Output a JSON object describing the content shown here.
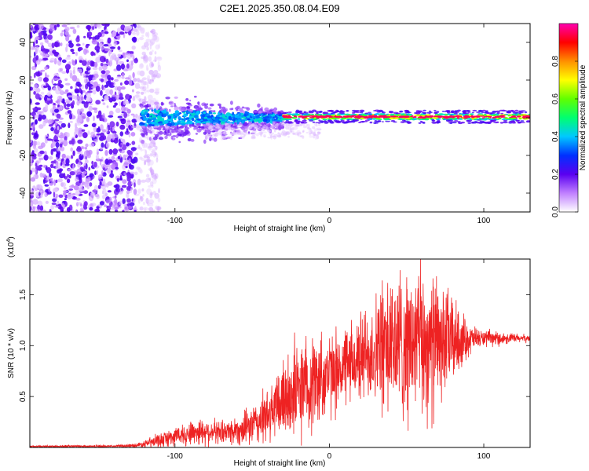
{
  "title": "C2E1.2025.350.08.04.E09",
  "colors": {
    "snr_line": "#ee2222",
    "marker": "#6a00f4",
    "axis": "#000000"
  },
  "colormap": [
    "#ffffff",
    "#c080ff",
    "#5a00f0",
    "#0030ff",
    "#00c8ff",
    "#00ff70",
    "#60ff00",
    "#ffff00",
    "#ff9000",
    "#ff0000",
    "#ff00b0"
  ],
  "chart_data": [
    {
      "type": "heatmap",
      "title": "C2E1.2025.350.08.04.E09",
      "xlabel": "Height of straight line (km)",
      "ylabel": "Frequency (Hz)",
      "xlim": [
        -194,
        130
      ],
      "ylim": [
        -50,
        50
      ],
      "xticks": [
        -100,
        0,
        100
      ],
      "xtick_labels": [
        "-100",
        "0",
        "100"
      ],
      "yticks": [
        -40,
        -20,
        0,
        20,
        40
      ],
      "ytick_labels": [
        "-40",
        "-20",
        "0",
        "20",
        "40"
      ],
      "colorbar": {
        "label": "Normalized spectral amplitude",
        "range": [
          0,
          1
        ],
        "ticks": [
          0.0,
          0.2,
          0.4,
          0.6,
          0.8
        ],
        "tick_labels": [
          "0.0",
          "0.2",
          "0.4",
          "0.6",
          "0.8"
        ]
      },
      "regions": [
        {
          "name": "noise",
          "x": [
            -194,
            -110
          ],
          "freq_spread": 50,
          "amplitude": 0.15
        },
        {
          "name": "transition",
          "x": [
            -122,
            -30
          ],
          "freq_center": 0,
          "freq_spread": [
            6,
            12
          ],
          "amplitude": [
            0.3,
            0.45
          ]
        },
        {
          "name": "carrier",
          "x": [
            -30,
            130
          ],
          "freq_center": 0.5,
          "freq_spread": 1.5,
          "amplitude": 0.95
        }
      ]
    },
    {
      "type": "line",
      "xlabel": "Height of straight line (km)",
      "ylabel": "SNR (10 * v/v)",
      "y_multiplier_label": "(x10",
      "y_multiplier_exp": "4",
      "y_multiplier_close": ")",
      "xlim": [
        -194,
        130
      ],
      "ylim": [
        0,
        1.85
      ],
      "xticks": [
        -100,
        0,
        100
      ],
      "xtick_labels": [
        "-100",
        "0",
        "100"
      ],
      "yticks": [
        0.5,
        1.0,
        1.5
      ],
      "ytick_labels": [
        "0.5",
        "1.0",
        "1.5"
      ],
      "envelope": [
        {
          "x": -194,
          "base": 0.01,
          "amp": 0.01
        },
        {
          "x": -140,
          "base": 0.012,
          "amp": 0.012
        },
        {
          "x": -125,
          "base": 0.02,
          "amp": 0.02
        },
        {
          "x": -112,
          "base": 0.06,
          "amp": 0.06
        },
        {
          "x": -100,
          "base": 0.11,
          "amp": 0.09
        },
        {
          "x": -85,
          "base": 0.16,
          "amp": 0.13
        },
        {
          "x": -70,
          "base": 0.15,
          "amp": 0.1
        },
        {
          "x": -55,
          "base": 0.18,
          "amp": 0.15
        },
        {
          "x": -40,
          "base": 0.3,
          "amp": 0.25
        },
        {
          "x": -30,
          "base": 0.48,
          "amp": 0.4
        },
        {
          "x": -15,
          "base": 0.62,
          "amp": 0.48
        },
        {
          "x": 0,
          "base": 0.72,
          "amp": 0.38
        },
        {
          "x": 15,
          "base": 0.82,
          "amp": 0.35
        },
        {
          "x": 28,
          "base": 0.95,
          "amp": 0.5
        },
        {
          "x": 40,
          "base": 1.0,
          "amp": 0.7
        },
        {
          "x": 55,
          "base": 1.02,
          "amp": 0.7
        },
        {
          "x": 68,
          "base": 1.02,
          "amp": 0.65
        },
        {
          "x": 80,
          "base": 1.05,
          "amp": 0.4
        },
        {
          "x": 90,
          "base": 1.06,
          "amp": 0.15
        },
        {
          "x": 98,
          "base": 1.07,
          "amp": 0.08
        },
        {
          "x": 130,
          "base": 1.07,
          "amp": 0.03
        }
      ]
    }
  ]
}
